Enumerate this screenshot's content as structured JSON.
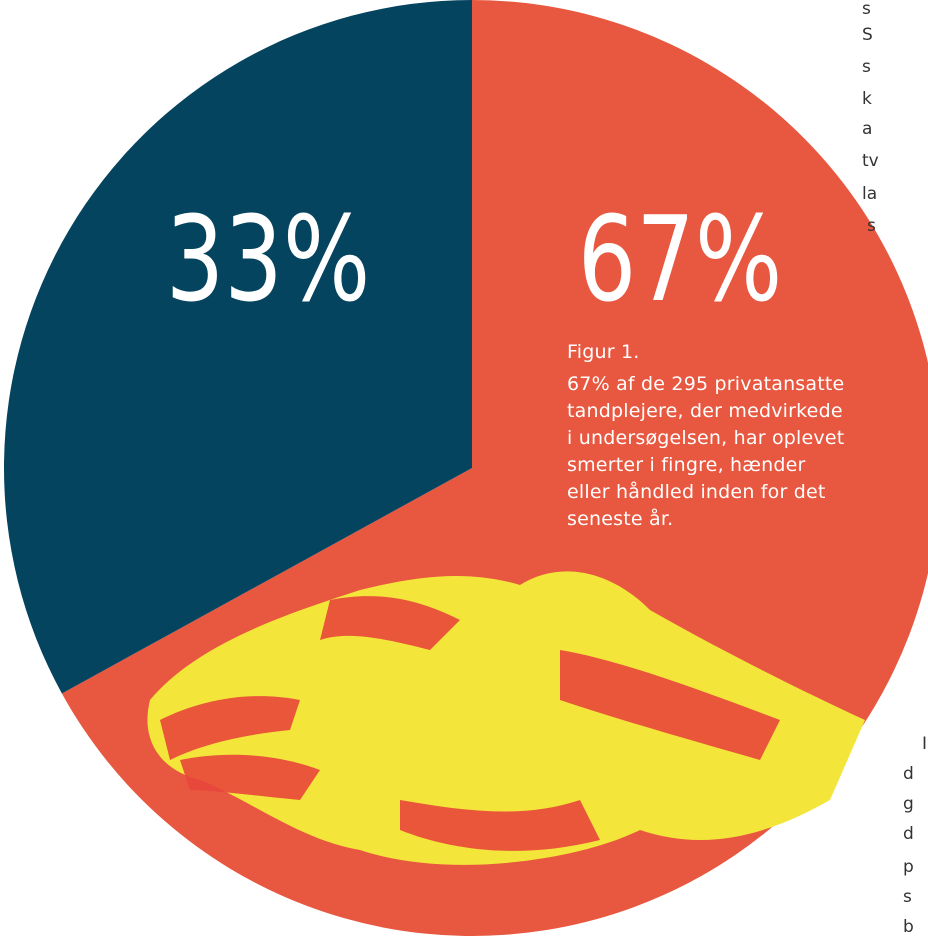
{
  "chart_data": {
    "type": "pie",
    "values": [
      67,
      33
    ],
    "value_labels": [
      "67%",
      "33%"
    ],
    "colors": [
      "#e8573f",
      "#04445f"
    ],
    "caption": [
      "Figur 1.",
      "67% af de 295 privatansatte",
      "tandplejere, der medvirkede",
      "i undersøgelsen, har oplevet",
      "smerter i fingre, hænder",
      "eller håndled inden for det",
      "seneste år."
    ]
  },
  "page_fragments": {
    "top": [
      "s",
      "S",
      "s",
      "k",
      "a",
      "tv",
      "la",
      "s"
    ],
    "bottom": [
      "I",
      "d",
      "g",
      "d",
      "p",
      "s",
      "b"
    ]
  }
}
